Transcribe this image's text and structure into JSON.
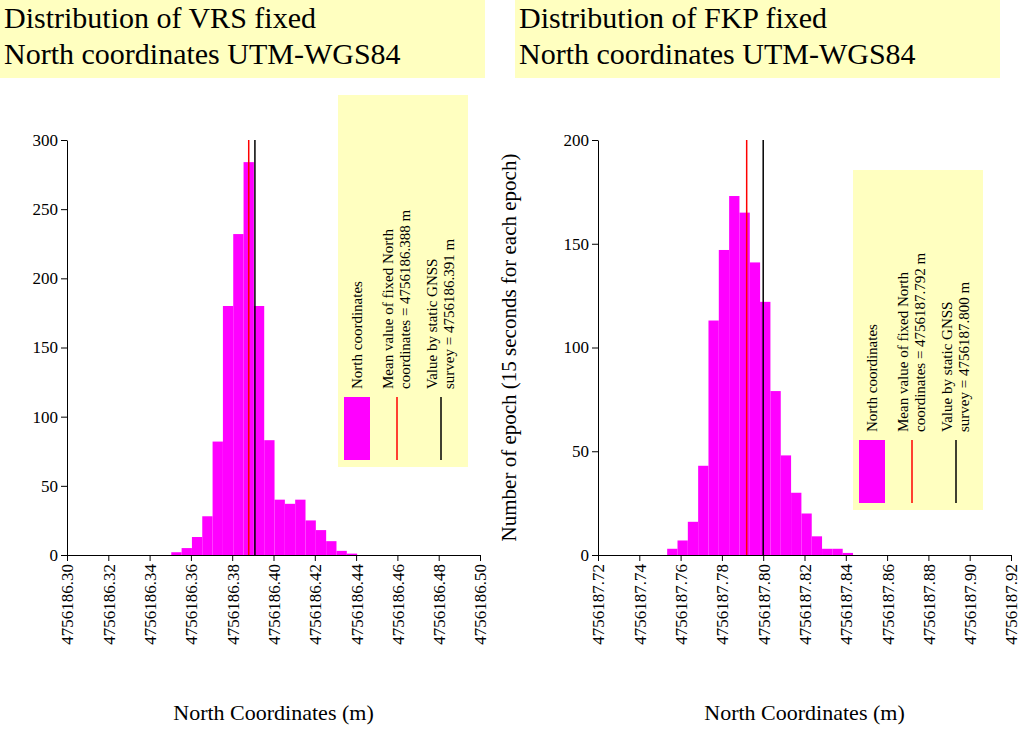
{
  "chart_data": [
    {
      "type": "histogram",
      "title": "Distribution of VRS fixed",
      "subtitle": "North coordinates UTM-WGS84",
      "x_label": "North Coordinates (m)",
      "bins": [
        4756186.3505,
        4756186.3555,
        4756186.3605,
        4756186.3655,
        4756186.3705,
        4756186.3755,
        4756186.3805,
        4756186.3855,
        4756186.3905,
        4756186.3955,
        4756186.4005,
        4756186.4055,
        4756186.4105,
        4756186.4155,
        4756186.4205,
        4756186.4255,
        4756186.4305,
        4756186.4355,
        4756186.4405
      ],
      "series": [
        {
          "name": "North coordinates",
          "color": "#ff00ff",
          "values": [
            2,
            5,
            13,
            28,
            82,
            180,
            232,
            284,
            180,
            83,
            40,
            37,
            40,
            25,
            18,
            10,
            3,
            1
          ]
        }
      ],
      "reference_lines": [
        {
          "name": "Mean value of fixed North coordinates = 4756186.388 m",
          "value": 4756186.388,
          "color": "#ff0000"
        },
        {
          "name": "Value by static GNSS survey = 4756186.391 m",
          "value": 4756186.391,
          "color": "#000000"
        }
      ],
      "xlim": [
        4756186.3,
        4756186.5
      ],
      "xticks": [
        {
          "value": 4756186.3,
          "label": "4756186.30"
        },
        {
          "value": 4756186.32,
          "label": "4756186.32"
        },
        {
          "value": 4756186.34,
          "label": "4756186.34"
        },
        {
          "value": 4756186.36,
          "label": "4756186.36"
        },
        {
          "value": 4756186.38,
          "label": "4756186.38"
        },
        {
          "value": 4756186.4,
          "label": "4756186.40"
        },
        {
          "value": 4756186.42,
          "label": "4756186.42"
        },
        {
          "value": 4756186.44,
          "label": "4756186.44"
        },
        {
          "value": 4756186.46,
          "label": "4756186.46"
        },
        {
          "value": 4756186.48,
          "label": "4756186.48"
        },
        {
          "value": 4756186.5,
          "label": "4756186.50"
        }
      ],
      "ylim": [
        0,
        300
      ],
      "yticks": [
        0,
        50,
        100,
        150,
        200,
        250,
        300
      ],
      "legend": "top-right"
    },
    {
      "type": "histogram",
      "title": "Distribution of FKP fixed",
      "subtitle": "North coordinates UTM-WGS84",
      "x_label": "North Coordinates (m)",
      "y_label": "Number of epoch (15 seconds for each epoch)",
      "bins": [
        4756187.7535,
        4756187.7585,
        4756187.7635,
        4756187.7685,
        4756187.7735,
        4756187.7785,
        4756187.7835,
        4756187.7885,
        4756187.7935,
        4756187.7985,
        4756187.8035,
        4756187.8085,
        4756187.8135,
        4756187.8185,
        4756187.8235,
        4756187.8285,
        4756187.8335,
        4756187.8385,
        4756187.8435
      ],
      "series": [
        {
          "name": "North coordinates",
          "color": "#ff00ff",
          "values": [
            3,
            7,
            16,
            43,
            113,
            147,
            173,
            165,
            141,
            122,
            79,
            48,
            30,
            20,
            9,
            3,
            3,
            1
          ]
        }
      ],
      "reference_lines": [
        {
          "name": "Mean value of fixed North coordinates = 4756187.792 m",
          "value": 4756187.792,
          "color": "#ff0000"
        },
        {
          "name": "Value by static GNSS survey = 4756187.800 m",
          "value": 4756187.8,
          "color": "#000000"
        }
      ],
      "xlim": [
        4756187.72,
        4756187.92
      ],
      "xticks": [
        {
          "value": 4756187.72,
          "label": "4756187.72"
        },
        {
          "value": 4756187.74,
          "label": "4756187.74"
        },
        {
          "value": 4756187.76,
          "label": "4756187.76"
        },
        {
          "value": 4756187.78,
          "label": "4756187.78"
        },
        {
          "value": 4756187.8,
          "label": "4756187.80"
        },
        {
          "value": 4756187.82,
          "label": "4756187.82"
        },
        {
          "value": 4756187.84,
          "label": "4756187.84"
        },
        {
          "value": 4756187.86,
          "label": "4756187.86"
        },
        {
          "value": 4756187.88,
          "label": "4756187.88"
        },
        {
          "value": 4756187.9,
          "label": "4756187.90"
        },
        {
          "value": 4756187.92,
          "label": "4756187.92"
        }
      ],
      "ylim": [
        0,
        200
      ],
      "yticks": [
        0,
        50,
        100,
        150,
        200
      ],
      "legend": "right"
    }
  ]
}
